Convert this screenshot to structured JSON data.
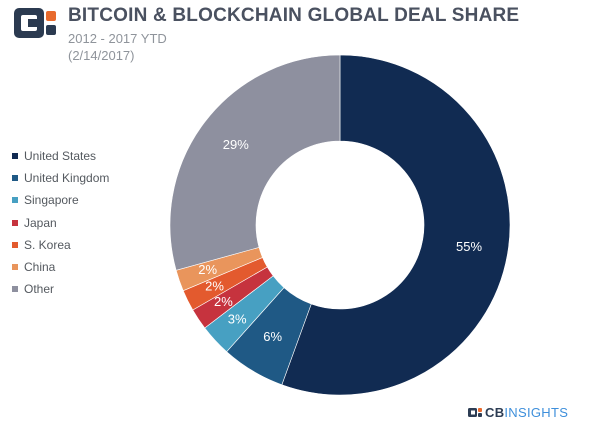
{
  "header": {
    "title": "BITCOIN & BLOCKCHAIN GLOBAL DEAL SHARE",
    "subtitle_line1": "2012 - 2017 YTD",
    "subtitle_line2": "(2/14/2017)"
  },
  "brand": {
    "logo_icon": "cb-insights-logo-icon",
    "name_part1": "CB",
    "name_part2": "INSIGHTS"
  },
  "colors": {
    "United States": "#112b52",
    "United Kingdom": "#1f5985",
    "Singapore": "#47a0c2",
    "Japan": "#c6333e",
    "S. Korea": "#e35a2e",
    "China": "#e9955c",
    "Other": "#8e909f"
  },
  "chart_data": {
    "type": "pie",
    "donut": true,
    "categories": [
      "United States",
      "United Kingdom",
      "Singapore",
      "Japan",
      "S. Korea",
      "China",
      "Other"
    ],
    "values": [
      55,
      6,
      3,
      2,
      2,
      2,
      29
    ],
    "value_labels": [
      "55%",
      "6%",
      "3%",
      "2%",
      "2%",
      "2%",
      "29%"
    ],
    "start": "12 o'clock",
    "direction": "clockwise",
    "legend": "left"
  }
}
